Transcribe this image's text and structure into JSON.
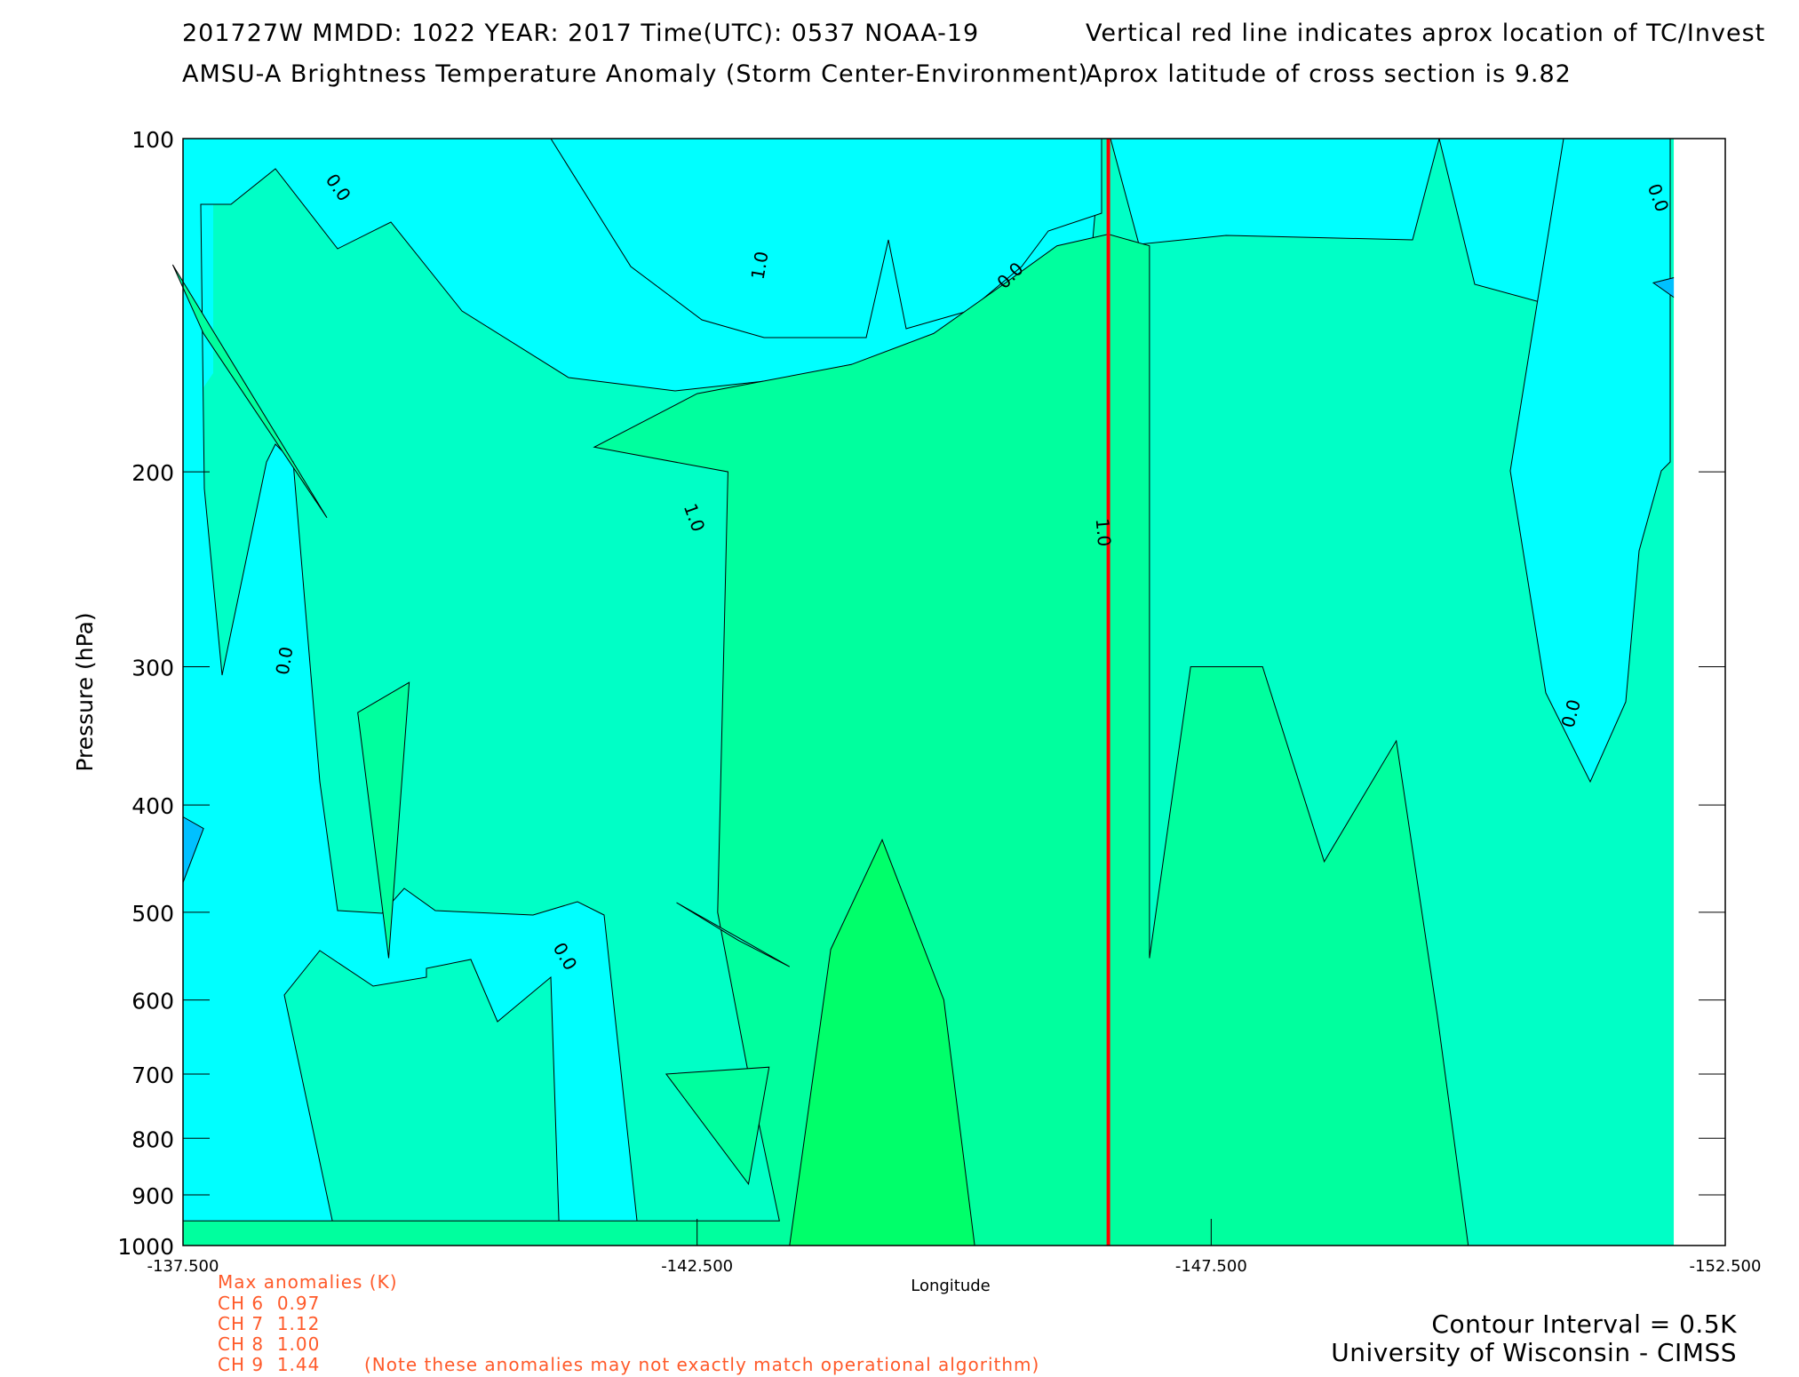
{
  "header": {
    "line1_left": "201727W  MMDD: 1022 YEAR: 2017 Time(UTC): 0537 NOAA-19",
    "line2_left": "AMSU-A Brightness Temperature Anomaly (Storm Center-Environment)",
    "line1_right": "Vertical red line indicates aprox location of TC/Invest",
    "line2_right": "Aprox latitude of cross section is 9.82"
  },
  "chart_data": {
    "type": "heatmap",
    "subtype": "filled-contour cross section",
    "ylabel": "Pressure (hPa)",
    "xlabel": "Longitude",
    "y_scale": "log",
    "ylim": [
      1000,
      100
    ],
    "xlim": [
      -137.5,
      -152.5
    ],
    "y_ticks": [
      "100",
      "200",
      "300",
      "400",
      "500",
      "600",
      "700",
      "800",
      "900",
      "1000"
    ],
    "y_tick_values": [
      100,
      200,
      300,
      400,
      500,
      600,
      700,
      800,
      900,
      1000
    ],
    "x_ticks": [
      "-137.500",
      "-142.500",
      "-147.500",
      "-152.500"
    ],
    "x_tick_values": [
      -137.5,
      -142.5,
      -147.5,
      -152.5
    ],
    "contour_interval_K": 0.5,
    "contour_labels": [
      "0.0",
      "0.0",
      "1.0",
      "0.0",
      "1.0",
      "1.0",
      "0.0",
      "0.0",
      "0.0"
    ],
    "level_colors": {
      "-0.5": "#00c0ff",
      "0.0": "#00ffff",
      "0.5": "#00ffc6",
      "1.0": "#00ff9e",
      "1.5": "#00ff6a"
    },
    "tc_longitude": -146.5,
    "tc_line_color": "#ff0000",
    "plot_max_longitude": -152.0,
    "regions": [
      {
        "level": 1.0,
        "lonlat": [
          [
            -137.5,
            950
          ],
          [
            -143.3,
            950
          ],
          [
            -143.0,
            700
          ],
          [
            -142.7,
            500
          ],
          [
            -142.8,
            200
          ],
          [
            -141.5,
            190
          ],
          [
            -142.5,
            170
          ],
          [
            -144.0,
            160
          ],
          [
            -144.8,
            150
          ],
          [
            -145.5,
            135
          ],
          [
            -146.0,
            125
          ],
          [
            -146.5,
            122
          ],
          [
            -146.9,
            125
          ],
          [
            -146.9,
            550
          ],
          [
            -147.3,
            300
          ],
          [
            -148.0,
            300
          ],
          [
            -148.6,
            450
          ],
          [
            -149.3,
            350
          ],
          [
            -149.7,
            620
          ],
          [
            -150.0,
            1000
          ],
          [
            -137.5,
            1000
          ]
        ]
      },
      {
        "level": 1.0,
        "lonlat": [
          [
            -138.9,
            220
          ],
          [
            -137.4,
            130
          ],
          [
            -137.7,
            150
          ]
        ]
      },
      {
        "level": 1.0,
        "lonlat": [
          [
            -139.2,
            330
          ],
          [
            -139.7,
            310
          ],
          [
            -139.5,
            550
          ]
        ]
      },
      {
        "level": 1.0,
        "lonlat": [
          [
            -142.2,
            700
          ],
          [
            -143.2,
            690
          ],
          [
            -143.0,
            880
          ]
        ]
      },
      {
        "level": 1.5,
        "lonlat": [
          [
            -143.8,
            540
          ],
          [
            -144.3,
            430
          ],
          [
            -144.9,
            600
          ],
          [
            -145.2,
            1000
          ],
          [
            -143.4,
            1000
          ]
        ]
      },
      {
        "level": 0.5,
        "lonlat": [
          [
            -142.3,
            490
          ],
          [
            -142.9,
            530
          ],
          [
            -143.4,
            560
          ]
        ]
      },
      {
        "level": -0.5,
        "lonlat": [
          [
            -137.5,
            410
          ],
          [
            -137.7,
            420
          ],
          [
            -137.5,
            470
          ]
        ]
      },
      {
        "level": -0.5,
        "lonlat": [
          [
            -152.5,
            130
          ],
          [
            -151.8,
            135
          ],
          [
            -152.5,
            150
          ]
        ]
      }
    ]
  },
  "annotations": {
    "max_anomalies_title": "Max anomalies (K)",
    "channels": [
      {
        "label": "CH 6",
        "value": "0.97"
      },
      {
        "label": "CH 7",
        "value": "1.12"
      },
      {
        "label": "CH 8",
        "value": "1.00"
      },
      {
        "label": "CH 9",
        "value": "1.44"
      }
    ],
    "note": "(Note these anomalies may not exactly match operational algorithm)",
    "contour_interval_text": "Contour Interval = 0.5K",
    "credit": "University of Wisconsin - CIMSS"
  },
  "colors": {
    "tc_line": "#ff0000",
    "annotation_text": "#ff5a2a"
  }
}
